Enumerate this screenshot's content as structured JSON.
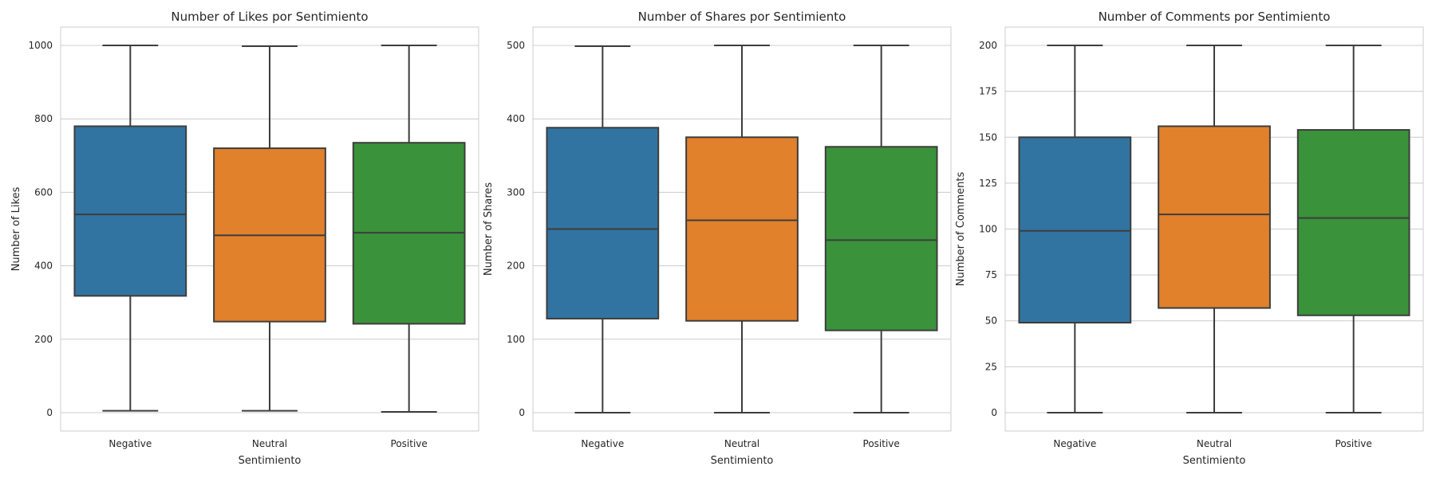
{
  "chart_data": [
    {
      "type": "box",
      "title": "Number of Likes por Sentimiento",
      "xlabel": "Sentimiento",
      "ylabel": "Number of Likes",
      "ylim": [
        -50,
        1050
      ],
      "yticks": [
        0,
        200,
        400,
        600,
        800,
        1000
      ],
      "grid": true,
      "categories": [
        "Negative",
        "Neutral",
        "Positive"
      ],
      "colors": [
        "#3274a1",
        "#e1812c",
        "#3a923a"
      ],
      "boxes": [
        {
          "whislo": 5,
          "q1": 318,
          "med": 540,
          "q3": 780,
          "whishi": 1000
        },
        {
          "whislo": 5,
          "q1": 248,
          "med": 483,
          "q3": 720,
          "whishi": 998
        },
        {
          "whislo": 2,
          "q1": 242,
          "med": 490,
          "q3": 735,
          "whishi": 1000
        }
      ]
    },
    {
      "type": "box",
      "title": "Number of Shares por Sentimiento",
      "xlabel": "Sentimiento",
      "ylabel": "Number of Shares",
      "ylim": [
        -25,
        525
      ],
      "yticks": [
        0,
        100,
        200,
        300,
        400,
        500
      ],
      "grid": true,
      "categories": [
        "Negative",
        "Neutral",
        "Positive"
      ],
      "colors": [
        "#3274a1",
        "#e1812c",
        "#3a923a"
      ],
      "boxes": [
        {
          "whislo": 0,
          "q1": 128,
          "med": 250,
          "q3": 388,
          "whishi": 499
        },
        {
          "whislo": 0,
          "q1": 125,
          "med": 262,
          "q3": 375,
          "whishi": 500
        },
        {
          "whislo": 0,
          "q1": 112,
          "med": 235,
          "q3": 362,
          "whishi": 500
        }
      ]
    },
    {
      "type": "box",
      "title": "Number of Comments por Sentimiento",
      "xlabel": "Sentimiento",
      "ylabel": "Number of Comments",
      "ylim": [
        -10,
        210
      ],
      "yticks": [
        0,
        25,
        50,
        75,
        100,
        125,
        150,
        175,
        200
      ],
      "grid": true,
      "categories": [
        "Negative",
        "Neutral",
        "Positive"
      ],
      "colors": [
        "#3274a1",
        "#e1812c",
        "#3a923a"
      ],
      "boxes": [
        {
          "whislo": 0,
          "q1": 49,
          "med": 99,
          "q3": 150,
          "whishi": 200
        },
        {
          "whislo": 0,
          "q1": 57,
          "med": 108,
          "q3": 156,
          "whishi": 200
        },
        {
          "whislo": 0,
          "q1": 53,
          "med": 106,
          "q3": 154,
          "whishi": 200
        }
      ]
    }
  ]
}
